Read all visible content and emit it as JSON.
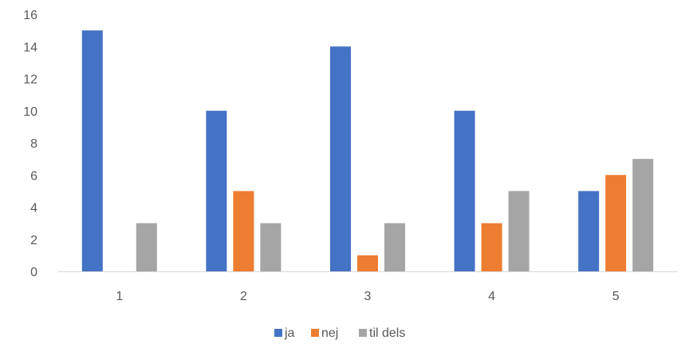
{
  "chart_data": {
    "type": "bar",
    "categories": [
      "1",
      "2",
      "3",
      "4",
      "5"
    ],
    "series": [
      {
        "name": "ja",
        "values": [
          15,
          10,
          14,
          10,
          5
        ],
        "color": "#4472C4"
      },
      {
        "name": "nej",
        "values": [
          0,
          5,
          1,
          3,
          6
        ],
        "color": "#ED7D31"
      },
      {
        "name": "til dels",
        "values": [
          3,
          3,
          3,
          5,
          7
        ],
        "color": "#A5A5A5"
      }
    ],
    "y_ticks": [
      "0",
      "2",
      "4",
      "6",
      "8",
      "10",
      "12",
      "14",
      "16"
    ],
    "ylim": [
      0,
      16
    ],
    "grid": false,
    "legend_position": "bottom",
    "axis_color": "#D9D9D9",
    "text_color": "#595959"
  }
}
